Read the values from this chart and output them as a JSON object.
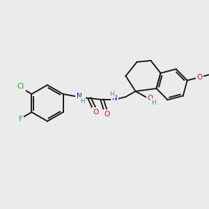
{
  "bg_color": "#ebebeb",
  "bond_color": "#1a1a1a",
  "bw": 1.4,
  "atom_colors": {
    "N": "#1a1acc",
    "O": "#cc1a1a",
    "Cl": "#22aa22",
    "F": "#22aa22",
    "H": "#5588aa",
    "C": "#1a1a1a"
  }
}
